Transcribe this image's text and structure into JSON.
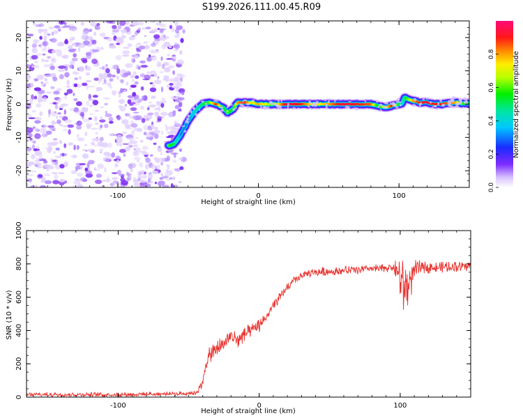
{
  "figure_title": "S199.2026.111.00.45.R09",
  "chart_data": [
    {
      "type": "heatmap",
      "panel": "spectrogram",
      "xlabel": "Height of straight line (km)",
      "ylabel": "Frequency (Hz)",
      "xlim": [
        -165,
        150
      ],
      "ylim": [
        -25,
        25
      ],
      "x_ticks": [
        -100,
        0,
        100
      ],
      "x_tick_labels": [
        "-100",
        "0",
        "100"
      ],
      "y_ticks": [
        -20,
        -10,
        0,
        10,
        20
      ],
      "y_tick_labels": [
        "-20",
        "-10",
        "0",
        "10",
        "20"
      ],
      "noise_region_x": [
        -165,
        -53
      ],
      "ridge": {
        "x": [
          -64,
          -60,
          -55,
          -50,
          -45,
          -40,
          -35,
          -30,
          -25,
          -22,
          -18,
          -15,
          -10,
          -5,
          0,
          10,
          20,
          30,
          40,
          50,
          60,
          70,
          80,
          85,
          90,
          95,
          100,
          102,
          104,
          106,
          110,
          115,
          120,
          125,
          130,
          135,
          140,
          145,
          150
        ],
        "y": [
          -12.5,
          -12,
          -9,
          -5,
          -2,
          0,
          0.5,
          0,
          -1,
          -2.5,
          -1.5,
          0.5,
          0.5,
          0.5,
          0,
          0,
          0,
          0,
          0,
          0,
          0,
          0,
          0,
          -0.5,
          -1,
          -0.5,
          0,
          0,
          2,
          1.5,
          1,
          0.5,
          0.5,
          0,
          0,
          0.3,
          0.5,
          0.2,
          0.3
        ],
        "amplitude": [
          0.6,
          0.5,
          0.3,
          0.3,
          0.4,
          0.5,
          0.6,
          0.9,
          0.5,
          0.6,
          0.5,
          0.8,
          0.9,
          0.7,
          0.8,
          0.6,
          0.95,
          0.9,
          0.7,
          0.8,
          0.95,
          0.9,
          0.85,
          0.5,
          0.7,
          0.9,
          0.5,
          0.4,
          0.5,
          0.6,
          0.8,
          0.9,
          0.95,
          0.9,
          0.9,
          0.85,
          0.8,
          0.6,
          0.5
        ]
      },
      "colorbar": {
        "label": "Normalized spectral amplitude",
        "range": [
          0.0,
          1.0
        ],
        "ticks": [
          0.0,
          0.2,
          0.4,
          0.6,
          0.8
        ],
        "tick_labels": [
          "0.0",
          "0.2",
          "0.4",
          "0.6",
          "0.8"
        ]
      }
    },
    {
      "type": "line",
      "panel": "snr",
      "xlabel": "Height of straight line (km)",
      "ylabel": "SNR (10 * v/v)",
      "xlim": [
        -165,
        150
      ],
      "ylim": [
        0,
        1000
      ],
      "x_ticks": [
        -100,
        0,
        100
      ],
      "x_tick_labels": [
        "-100",
        "0",
        "100"
      ],
      "y_ticks": [
        0,
        200,
        400,
        600,
        800,
        1000
      ],
      "y_tick_labels": [
        "0",
        "200",
        "400",
        "600",
        "800",
        "1000"
      ],
      "series": [
        {
          "name": "SNR",
          "color": "#e8302c",
          "x": [
            -165,
            -100,
            -60,
            -45,
            -40,
            -38,
            -35,
            -30,
            -25,
            -20,
            -15,
            -10,
            -5,
            0,
            5,
            10,
            15,
            20,
            25,
            30,
            40,
            50,
            60,
            70,
            80,
            90,
            95,
            100,
            103,
            106,
            110,
            115,
            120,
            130,
            140,
            150
          ],
          "y": [
            15,
            15,
            20,
            25,
            80,
            200,
            250,
            290,
            320,
            370,
            340,
            380,
            400,
            430,
            480,
            550,
            600,
            660,
            700,
            730,
            750,
            755,
            760,
            765,
            770,
            775,
            780,
            720,
            650,
            680,
            760,
            780,
            780,
            780,
            785,
            790
          ],
          "noise_amplitude": [
            20,
            20,
            20,
            20,
            40,
            80,
            80,
            80,
            80,
            80,
            80,
            70,
            60,
            60,
            50,
            50,
            50,
            40,
            40,
            40,
            40,
            40,
            40,
            40,
            40,
            40,
            40,
            240,
            240,
            200,
            100,
            60,
            50,
            50,
            50,
            50
          ]
        }
      ]
    }
  ]
}
